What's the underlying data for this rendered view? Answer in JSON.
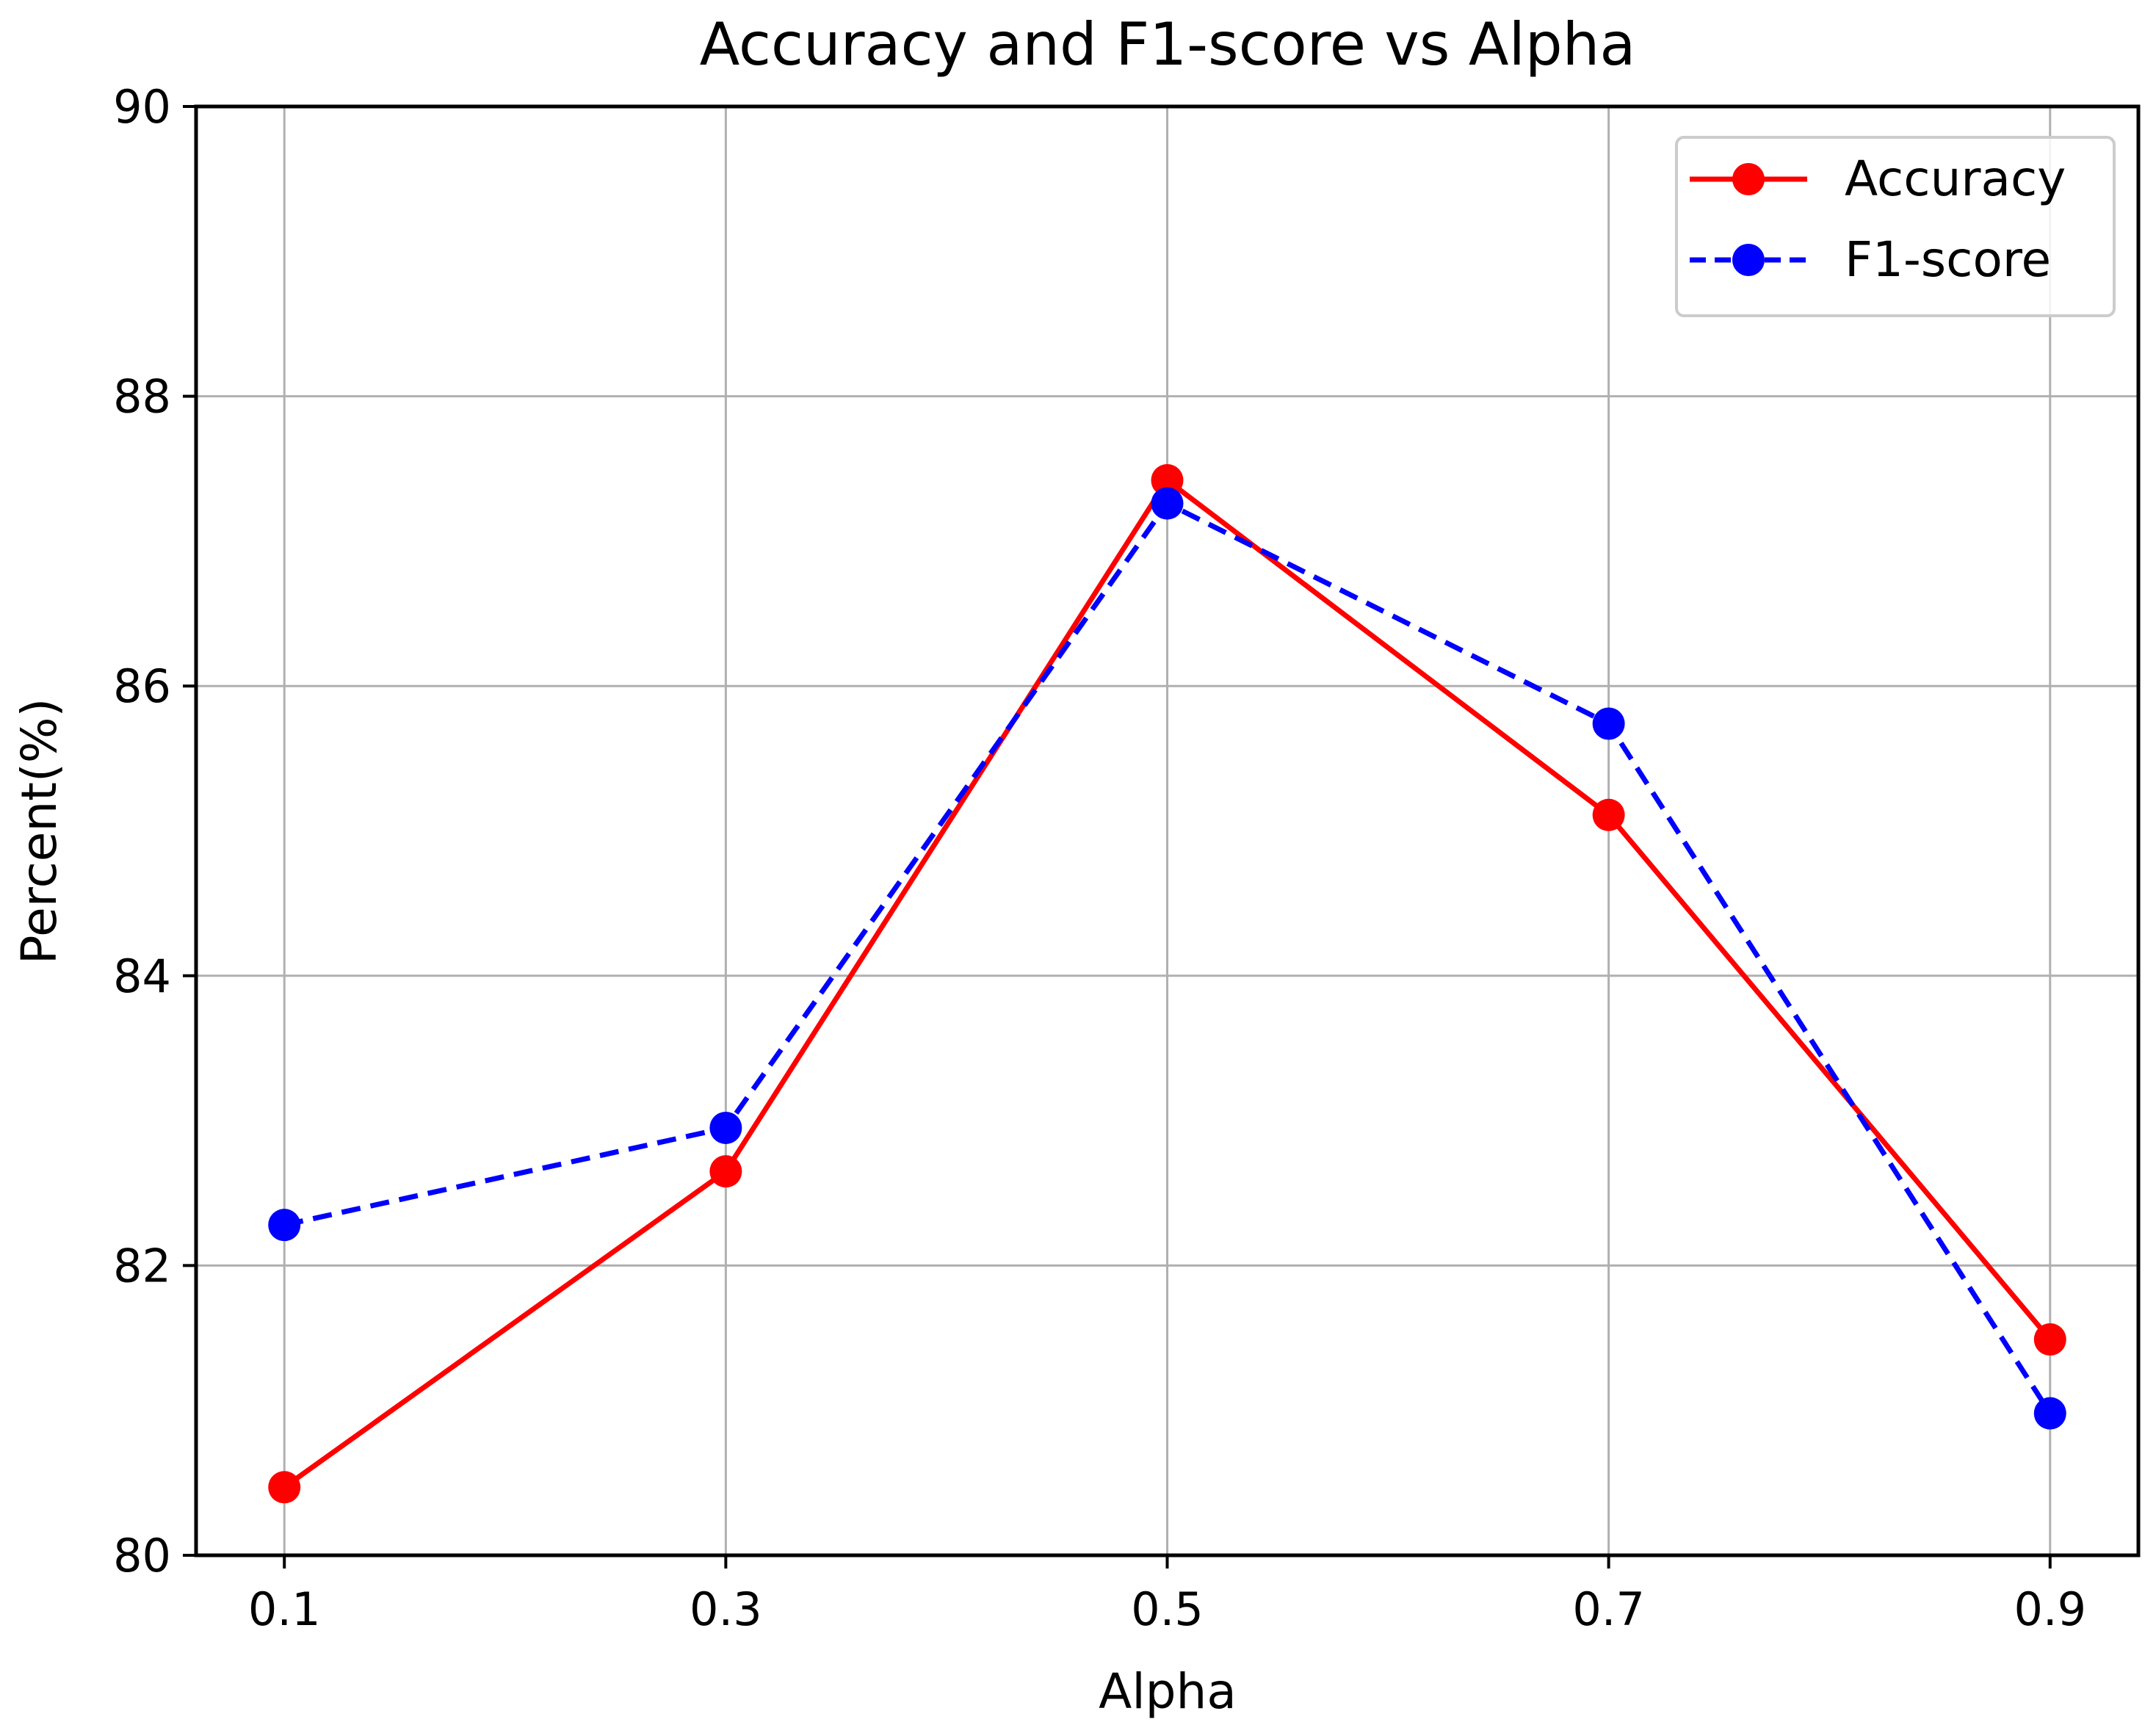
{
  "chart_data": {
    "type": "line",
    "title": "Accuracy and F1-score vs Alpha",
    "xlabel": "Alpha",
    "ylabel": "Percent(%)",
    "x": [
      0.1,
      0.3,
      0.5,
      0.7,
      0.9
    ],
    "x_tick_labels": [
      "0.1",
      "0.3",
      "0.5",
      "0.7",
      "0.9"
    ],
    "xlim": [
      0.06,
      0.94
    ],
    "ylim": [
      80,
      90
    ],
    "y_ticks": [
      80,
      82,
      84,
      86,
      88,
      90
    ],
    "y_tick_labels": [
      "80",
      "82",
      "84",
      "86",
      "88",
      "90"
    ],
    "grid": true,
    "legend_position": "top-right",
    "series": [
      {
        "name": "Accuracy",
        "color": "#ff0000",
        "line_style": "solid",
        "marker": "circle",
        "values": [
          80.47,
          82.65,
          87.42,
          85.11,
          81.49
        ]
      },
      {
        "name": "F1-score",
        "color": "#0000ff",
        "line_style": "dashed",
        "marker": "circle",
        "values": [
          82.28,
          82.95,
          87.26,
          85.74,
          80.98
        ]
      }
    ]
  }
}
